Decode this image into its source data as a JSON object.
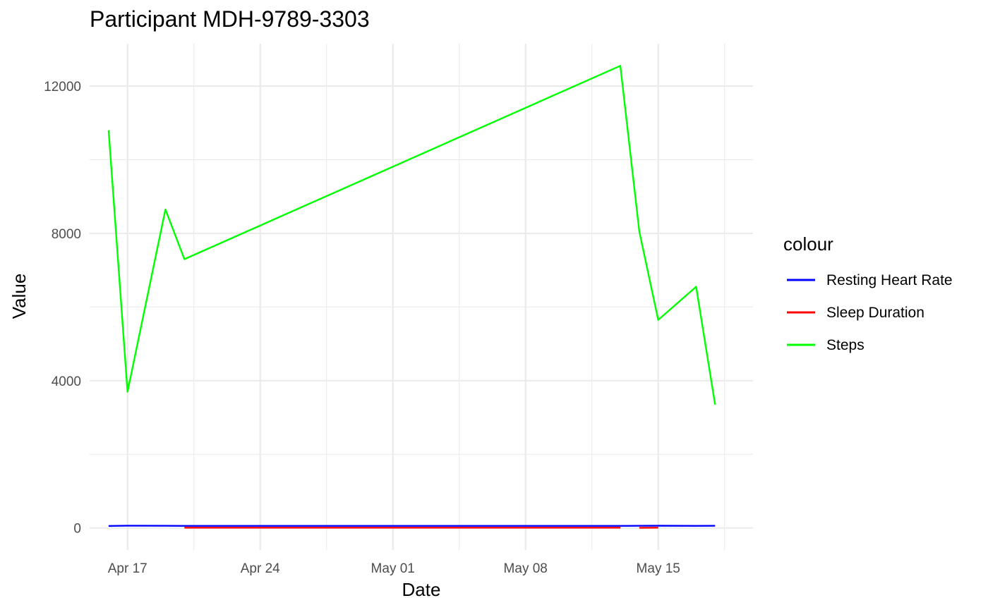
{
  "chart_data": {
    "type": "line",
    "title": "Participant MDH-9789-3303",
    "xlabel": "Date",
    "ylabel": "Value",
    "x_ticks": [
      "2024-04-17",
      "2024-04-24",
      "2024-05-01",
      "2024-05-08",
      "2024-05-15"
    ],
    "x_tick_labels": [
      "Apr 17",
      "Apr 24",
      "May 01",
      "May 08",
      "May 15"
    ],
    "y_ticks": [
      0,
      4000,
      8000,
      12000
    ],
    "y_tick_labels": [
      "0",
      "4000",
      "8000",
      "12000"
    ],
    "xlim": [
      "2024-04-15",
      "2024-05-20"
    ],
    "ylim": [
      -600,
      13150
    ],
    "grid": true,
    "legend": {
      "title": "colour",
      "position": "right"
    },
    "series": [
      {
        "name": "Resting Heart Rate",
        "color": "#0000ff",
        "points": [
          {
            "x": "2024-04-16",
            "y": 55
          },
          {
            "x": "2024-04-17",
            "y": 62
          },
          {
            "x": "2024-04-19",
            "y": 58
          },
          {
            "x": "2024-04-20",
            "y": 56
          },
          {
            "x": "2024-05-13",
            "y": 57
          },
          {
            "x": "2024-05-14",
            "y": 58
          },
          {
            "x": "2024-05-15",
            "y": 60
          },
          {
            "x": "2024-05-17",
            "y": 57
          },
          {
            "x": "2024-05-18",
            "y": 59
          }
        ]
      },
      {
        "name": "Sleep Duration",
        "color": "#ff0000",
        "segments": [
          [
            {
              "x": "2024-04-20",
              "y": 7
            },
            {
              "x": "2024-05-13",
              "y": 8
            }
          ],
          [
            {
              "x": "2024-05-14",
              "y": 6
            },
            {
              "x": "2024-05-15",
              "y": 7
            }
          ]
        ]
      },
      {
        "name": "Steps",
        "color": "#00ff00",
        "points": [
          {
            "x": "2024-04-16",
            "y": 10800
          },
          {
            "x": "2024-04-17",
            "y": 3700
          },
          {
            "x": "2024-04-19",
            "y": 8650
          },
          {
            "x": "2024-04-20",
            "y": 7300
          },
          {
            "x": "2024-05-13",
            "y": 12550
          },
          {
            "x": "2024-05-14",
            "y": 8050
          },
          {
            "x": "2024-05-15",
            "y": 5650
          },
          {
            "x": "2024-05-17",
            "y": 6550
          },
          {
            "x": "2024-05-18",
            "y": 3350
          }
        ]
      }
    ]
  }
}
